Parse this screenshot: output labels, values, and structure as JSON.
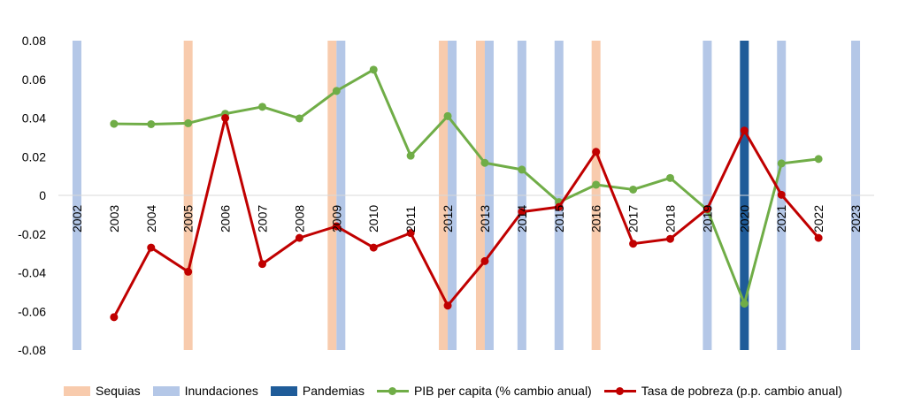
{
  "chart_data": {
    "type": "line",
    "title": "",
    "xlabel": "",
    "ylabel": "",
    "ylim": [
      -0.08,
      0.08
    ],
    "yticks": [
      "0.08",
      "0.06",
      "0.04",
      "0.02",
      "0",
      "-0.02",
      "-0.04",
      "-0.06",
      "-0.08"
    ],
    "ytick_values": [
      0.08,
      0.06,
      0.04,
      0.02,
      0,
      -0.02,
      -0.04,
      -0.06,
      -0.08
    ],
    "categories": [
      "2002",
      "2003",
      "2004",
      "2005",
      "2006",
      "2007",
      "2008",
      "2009",
      "2010",
      "2011",
      "2012",
      "2013",
      "2014",
      "2015",
      "2016",
      "2017",
      "2018",
      "2019",
      "2020",
      "2021",
      "2022",
      "2023"
    ],
    "events": [
      {
        "name": "Sequias",
        "color": "#F8CBAD",
        "years": [
          2005,
          2009,
          2012,
          2013,
          2016
        ]
      },
      {
        "name": "Inundaciones",
        "color": "#B4C7E7",
        "years": [
          2002,
          2009,
          2012,
          2013,
          2014,
          2015,
          2019,
          2021,
          2023
        ]
      },
      {
        "name": "Pandemias",
        "color": "#1F5C99",
        "years": [
          2020
        ]
      }
    ],
    "series": [
      {
        "name": "PIB per capita (% cambio anual)",
        "color": "#70AD47",
        "values": [
          null,
          0.037,
          0.0368,
          0.0373,
          0.0422,
          0.0458,
          0.0398,
          0.054,
          0.065,
          0.0205,
          0.041,
          0.0168,
          0.0133,
          -0.0035,
          0.0055,
          0.003,
          0.009,
          -0.0075,
          -0.056,
          0.0165,
          0.0188,
          null
        ]
      },
      {
        "name": "Tasa de pobreza (p.p. cambio anual)",
        "color": "#C00000",
        "values": [
          null,
          -0.063,
          -0.027,
          -0.0395,
          0.04,
          -0.0355,
          -0.022,
          -0.016,
          -0.027,
          -0.0195,
          -0.057,
          -0.034,
          -0.0085,
          -0.006,
          0.0225,
          -0.025,
          -0.0225,
          -0.007,
          0.0335,
          0.0003,
          -0.022,
          null
        ]
      }
    ],
    "legend": {
      "position": "bottom"
    },
    "grid": false
  }
}
